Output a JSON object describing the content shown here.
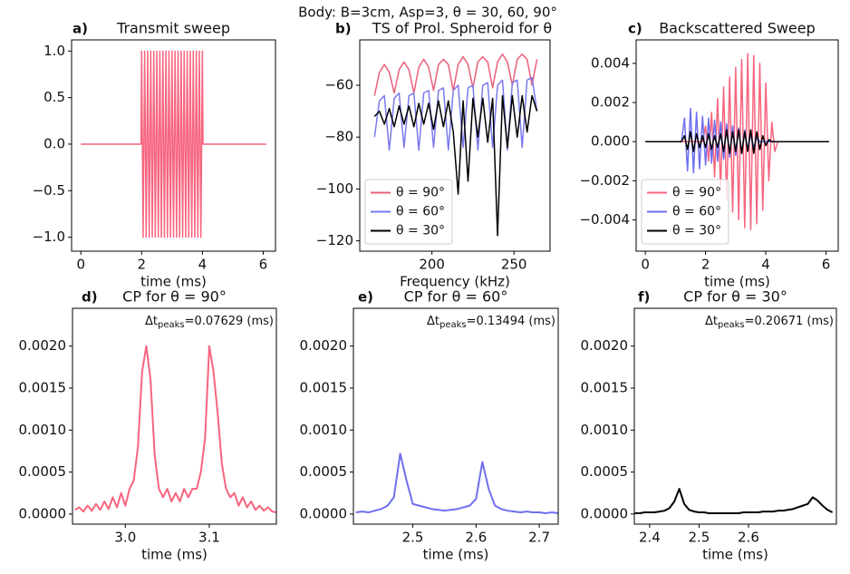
{
  "title": "Body: B=3cm, Asp=3, θ = 30, 60, 90°",
  "chart_data": [
    {
      "type": "line",
      "label": "a)",
      "title": "Transmit sweep",
      "xlabel": "time (ms)",
      "xlim": [
        -0.305,
        6.405
      ],
      "xticks": [
        0,
        2,
        4,
        6
      ],
      "ylim": [
        -1.15,
        1.12
      ],
      "yticks": [
        {
          "value": -1,
          "label": "−1.0"
        },
        {
          "value": -0.5,
          "label": "−0.5"
        },
        {
          "value": 0,
          "label": "0.0"
        },
        {
          "value": 0.5,
          "label": "0.5"
        },
        {
          "value": 1,
          "label": "1.0"
        }
      ],
      "x": [
        0,
        1.98,
        2.0,
        2.05,
        2.1,
        2.15,
        2.2,
        2.25,
        2.3,
        2.35,
        2.4,
        2.45,
        2.5,
        2.55,
        2.6,
        2.65,
        2.7,
        2.75,
        2.8,
        2.85,
        2.9,
        2.95,
        3.0,
        3.05,
        3.1,
        3.15,
        3.2,
        3.25,
        3.3,
        3.35,
        3.4,
        3.45,
        3.5,
        3.55,
        3.6,
        3.65,
        3.7,
        3.75,
        3.8,
        3.85,
        3.9,
        3.95,
        4.0,
        4.02,
        6.1
      ],
      "series": [
        {
          "color": "#f7657f",
          "values": [
            0,
            0,
            1,
            -1,
            1,
            -1,
            1,
            -1,
            1,
            -1,
            1,
            -1,
            1,
            -1,
            1,
            -1,
            1,
            -1,
            1,
            -1,
            1,
            -1,
            1,
            -1,
            1,
            -1,
            1,
            -1,
            1,
            -1,
            1,
            -1,
            1,
            -1,
            1,
            -1,
            1,
            -1,
            1,
            -1,
            1,
            -1,
            1,
            0,
            0
          ]
        }
      ]
    },
    {
      "type": "line",
      "label": "b)",
      "title": "TS of Prol. Spheroid for θ",
      "xlabel": "Frequency (kHz)",
      "xlim": [
        156,
        272
      ],
      "xticks": [
        200,
        250
      ],
      "ylim": [
        -124,
        -42.5
      ],
      "yticks": [
        {
          "value": -120,
          "label": "−120"
        },
        {
          "value": -100,
          "label": "−100"
        },
        {
          "value": -80,
          "label": "−80"
        },
        {
          "value": -60,
          "label": "−60"
        }
      ],
      "legend": "lower left",
      "x": [
        165,
        168,
        171,
        174,
        177,
        180,
        183,
        186,
        189,
        192,
        195,
        198,
        201,
        204,
        207,
        210,
        213,
        216,
        219,
        222,
        225,
        228,
        231,
        234,
        237,
        240,
        243,
        246,
        249,
        252,
        255,
        258,
        261,
        264
      ],
      "series": [
        {
          "name": "θ = 90°",
          "color": "#e9607a",
          "values": [
            -64,
            -55,
            -52,
            -55,
            -63,
            -54,
            -51,
            -54,
            -63,
            -53,
            -50,
            -53,
            -62,
            -52,
            -50,
            -52,
            -62,
            -52,
            -49,
            -52,
            -61,
            -51,
            -49,
            -51,
            -61,
            -51,
            -48,
            -51,
            -60,
            -50,
            -48,
            -50,
            -60,
            -50
          ]
        },
        {
          "name": "θ = 60°",
          "color": "#7a7aee",
          "values": [
            -80,
            -66,
            -64,
            -85,
            -65,
            -63,
            -84,
            -64,
            -63,
            -85,
            -63,
            -62,
            -84,
            -62,
            -61,
            -85,
            -62,
            -60,
            -84,
            -61,
            -60,
            -85,
            -60,
            -59,
            -84,
            -60,
            -58,
            -85,
            -59,
            -58,
            -84,
            -58,
            -57,
            -70
          ]
        },
        {
          "name": "θ = 30°",
          "color": "#000000",
          "values": [
            -72,
            -70,
            -75,
            -69,
            -76,
            -68,
            -75,
            -68,
            -76,
            -67,
            -75,
            -67,
            -77,
            -66,
            -76,
            -66,
            -78,
            -102,
            -66,
            -97,
            -65,
            -80,
            -65,
            -82,
            -65,
            -118,
            -64,
            -84,
            -64,
            -80,
            -64,
            -78,
            -64,
            -70
          ]
        }
      ]
    },
    {
      "type": "line",
      "label": "c)",
      "title": "Backscattered Sweep",
      "xlabel": "time (ms)",
      "xlim": [
        -0.305,
        6.405
      ],
      "xticks": [
        0,
        2,
        4,
        6
      ],
      "ylim": [
        -0.0056,
        0.0052
      ],
      "yticks": [
        {
          "value": -0.004,
          "label": "−0.004"
        },
        {
          "value": -0.002,
          "label": "−0.002"
        },
        {
          "value": 0,
          "label": "0.000"
        },
        {
          "value": 0.002,
          "label": "0.002"
        },
        {
          "value": 0.004,
          "label": "0.004"
        }
      ],
      "legend": "lower left",
      "x": [
        0,
        1.2,
        1.3,
        1.4,
        1.5,
        1.6,
        1.7,
        1.8,
        1.9,
        2.0,
        2.1,
        2.2,
        2.3,
        2.4,
        2.5,
        2.6,
        2.7,
        2.8,
        2.9,
        3.0,
        3.1,
        3.2,
        3.3,
        3.4,
        3.5,
        3.6,
        3.7,
        3.8,
        3.9,
        4.0,
        4.1,
        4.2,
        4.3,
        4.4,
        6.1
      ],
      "series": [
        {
          "name": "θ = 90°",
          "color": "#f7657f",
          "values": [
            0,
            0,
            0,
            0,
            0,
            0,
            0,
            0,
            0,
            0.0008,
            -0.001,
            0.0015,
            -0.0018,
            0.0022,
            -0.0025,
            0.0028,
            -0.003,
            0.0033,
            -0.0036,
            0.0038,
            -0.004,
            0.0042,
            -0.0044,
            0.0045,
            -0.0045,
            0.0044,
            -0.0042,
            0.004,
            -0.0035,
            0.003,
            -0.002,
            0.001,
            -0.0005,
            0,
            0
          ]
        },
        {
          "name": "θ = 60°",
          "color": "#6f6ff0",
          "values": [
            0,
            0,
            0.0012,
            -0.0015,
            0.0017,
            -0.0016,
            0.0015,
            -0.0014,
            0.0013,
            -0.0012,
            0.0012,
            -0.0011,
            0.0011,
            -0.001,
            0.001,
            -0.0009,
            0.0009,
            -0.0008,
            0.0008,
            -0.0007,
            0.0007,
            -0.0006,
            0.0006,
            -0.0005,
            0.0004,
            -0.0003,
            0.0002,
            0,
            0,
            0,
            0,
            0,
            0,
            0,
            0
          ]
        },
        {
          "name": "θ = 30°",
          "color": "#000000",
          "values": [
            0,
            0,
            0.0003,
            -0.0004,
            0.0005,
            -0.0005,
            0.0004,
            -0.0003,
            0.0003,
            -0.0003,
            0.0004,
            -0.0004,
            0.0003,
            -0.0003,
            0.0004,
            -0.0005,
            0.0006,
            -0.0006,
            0.0005,
            -0.0005,
            0.0006,
            -0.0006,
            0.0005,
            -0.0005,
            0.0006,
            -0.0006,
            0.0005,
            -0.0004,
            0.0003,
            -0.0002,
            0.0001,
            0,
            0,
            0,
            0
          ]
        }
      ]
    },
    {
      "type": "line",
      "label": "d)",
      "title": "CP for θ = 90°",
      "xlabel": "time (ms)",
      "annotation": [
        "Δt",
        "peaks",
        "=0.07629 (ms)"
      ],
      "xlim": [
        2.937,
        3.18
      ],
      "xticks": [
        {
          "value": 3.0,
          "label": "3.0"
        },
        {
          "value": 3.1,
          "label": "3.1"
        }
      ],
      "ylim": [
        -0.00012,
        0.00245
      ],
      "yticks": [
        {
          "value": 0,
          "label": "0.0000"
        },
        {
          "value": 0.0005,
          "label": "0.0005"
        },
        {
          "value": 0.001,
          "label": "0.0010"
        },
        {
          "value": 0.0015,
          "label": "0.0015"
        },
        {
          "value": 0.002,
          "label": "0.0020"
        }
      ],
      "x": [
        2.94,
        2.945,
        2.95,
        2.955,
        2.96,
        2.965,
        2.97,
        2.975,
        2.98,
        2.985,
        2.99,
        2.995,
        3.0,
        3.005,
        3.01,
        3.015,
        3.02,
        3.025,
        3.03,
        3.035,
        3.04,
        3.045,
        3.05,
        3.055,
        3.06,
        3.065,
        3.07,
        3.075,
        3.08,
        3.085,
        3.09,
        3.095,
        3.1,
        3.105,
        3.11,
        3.115,
        3.12,
        3.125,
        3.13,
        3.135,
        3.14,
        3.145,
        3.15,
        3.155,
        3.16,
        3.165,
        3.17,
        3.175,
        3.18
      ],
      "series": [
        {
          "color": "#f7657f",
          "values": [
            5e-05,
            8e-05,
            3e-05,
            0.0001,
            4e-05,
            0.00012,
            5e-05,
            0.00015,
            6e-05,
            0.0002,
            8e-05,
            0.00025,
            0.0001,
            0.0003,
            0.0004,
            0.0008,
            0.0017,
            0.002,
            0.0016,
            0.0007,
            0.0003,
            0.0002,
            0.0003,
            0.00015,
            0.00025,
            0.00015,
            0.0003,
            0.0002,
            0.0003,
            0.0003,
            0.0005,
            0.0009,
            0.002,
            0.0017,
            0.0012,
            0.0006,
            0.0003,
            0.0002,
            0.00025,
            0.0001,
            0.0002,
            8e-05,
            0.00015,
            5e-05,
            0.0001,
            4e-05,
            8e-05,
            3e-05,
            2e-05
          ]
        }
      ]
    },
    {
      "type": "line",
      "label": "e)",
      "title": "CP for θ = 60°",
      "xlabel": "time (ms)",
      "annotation": [
        "Δt",
        "peaks",
        "=0.13494 (ms)"
      ],
      "xlim": [
        2.406,
        2.73
      ],
      "xticks": [
        {
          "value": 2.5,
          "label": "2.5"
        },
        {
          "value": 2.6,
          "label": "2.6"
        },
        {
          "value": 2.7,
          "label": "2.7"
        }
      ],
      "ylim": [
        -0.00012,
        0.00245
      ],
      "yticks": [
        {
          "value": 0,
          "label": "0.0000"
        },
        {
          "value": 0.0005,
          "label": "0.0005"
        },
        {
          "value": 0.001,
          "label": "0.0010"
        },
        {
          "value": 0.0015,
          "label": "0.0015"
        },
        {
          "value": 0.002,
          "label": "0.0020"
        }
      ],
      "x": [
        2.41,
        2.42,
        2.43,
        2.44,
        2.45,
        2.46,
        2.47,
        2.48,
        2.49,
        2.5,
        2.51,
        2.52,
        2.53,
        2.54,
        2.55,
        2.56,
        2.57,
        2.58,
        2.59,
        2.6,
        2.61,
        2.62,
        2.63,
        2.64,
        2.65,
        2.66,
        2.67,
        2.68,
        2.69,
        2.7,
        2.71,
        2.72,
        2.73
      ],
      "series": [
        {
          "color": "#6f6ff0",
          "values": [
            2e-05,
            3e-05,
            2e-05,
            4e-05,
            6e-05,
            0.0001,
            0.0002,
            0.00072,
            0.0004,
            0.00012,
            0.0001,
            8e-05,
            6e-05,
            5e-05,
            4e-05,
            5e-05,
            6e-05,
            8e-05,
            0.0001,
            0.00018,
            0.00062,
            0.0003,
            0.0001,
            6e-05,
            4e-05,
            3e-05,
            2e-05,
            3e-05,
            2e-05,
            2e-05,
            1e-05,
            2e-05,
            1e-05
          ]
        }
      ]
    },
    {
      "type": "line",
      "label": "f)",
      "title": "CP for θ = 30°",
      "xlabel": "time (ms)",
      "annotation": [
        "Δt",
        "peaks",
        "=0.20671 (ms)"
      ],
      "xlim": [
        2.369,
        2.778
      ],
      "xticks": [
        {
          "value": 2.4,
          "label": "2.4"
        },
        {
          "value": 2.5,
          "label": "2.5"
        },
        {
          "value": 2.6,
          "label": "2.6"
        }
      ],
      "ylim": [
        -0.00012,
        0.00245
      ],
      "yticks": [
        {
          "value": 0,
          "label": "0.0000"
        },
        {
          "value": 0.0005,
          "label": "0.0005"
        },
        {
          "value": 0.001,
          "label": "0.0010"
        },
        {
          "value": 0.0015,
          "label": "0.0015"
        },
        {
          "value": 0.002,
          "label": "0.0020"
        }
      ],
      "x": [
        2.37,
        2.38,
        2.39,
        2.4,
        2.41,
        2.42,
        2.43,
        2.44,
        2.45,
        2.46,
        2.47,
        2.48,
        2.49,
        2.5,
        2.51,
        2.52,
        2.53,
        2.54,
        2.55,
        2.56,
        2.57,
        2.58,
        2.59,
        2.6,
        2.61,
        2.62,
        2.63,
        2.64,
        2.65,
        2.66,
        2.67,
        2.68,
        2.69,
        2.7,
        2.71,
        2.72,
        2.73,
        2.74,
        2.75,
        2.76,
        2.77
      ],
      "series": [
        {
          "color": "#000000",
          "values": [
            1e-05,
            1e-05,
            2e-05,
            2e-05,
            2e-05,
            3e-05,
            4e-05,
            7e-05,
            0.00015,
            0.0003,
            0.00012,
            5e-05,
            3e-05,
            2e-05,
            2e-05,
            1e-05,
            1e-05,
            1e-05,
            1e-05,
            1e-05,
            1e-05,
            1e-05,
            2e-05,
            2e-05,
            2e-05,
            2e-05,
            3e-05,
            3e-05,
            3e-05,
            4e-05,
            4e-05,
            5e-05,
            6e-05,
            8e-05,
            0.0001,
            0.00012,
            0.0002,
            0.00016,
            0.0001,
            5e-05,
            2e-05
          ]
        }
      ]
    }
  ]
}
